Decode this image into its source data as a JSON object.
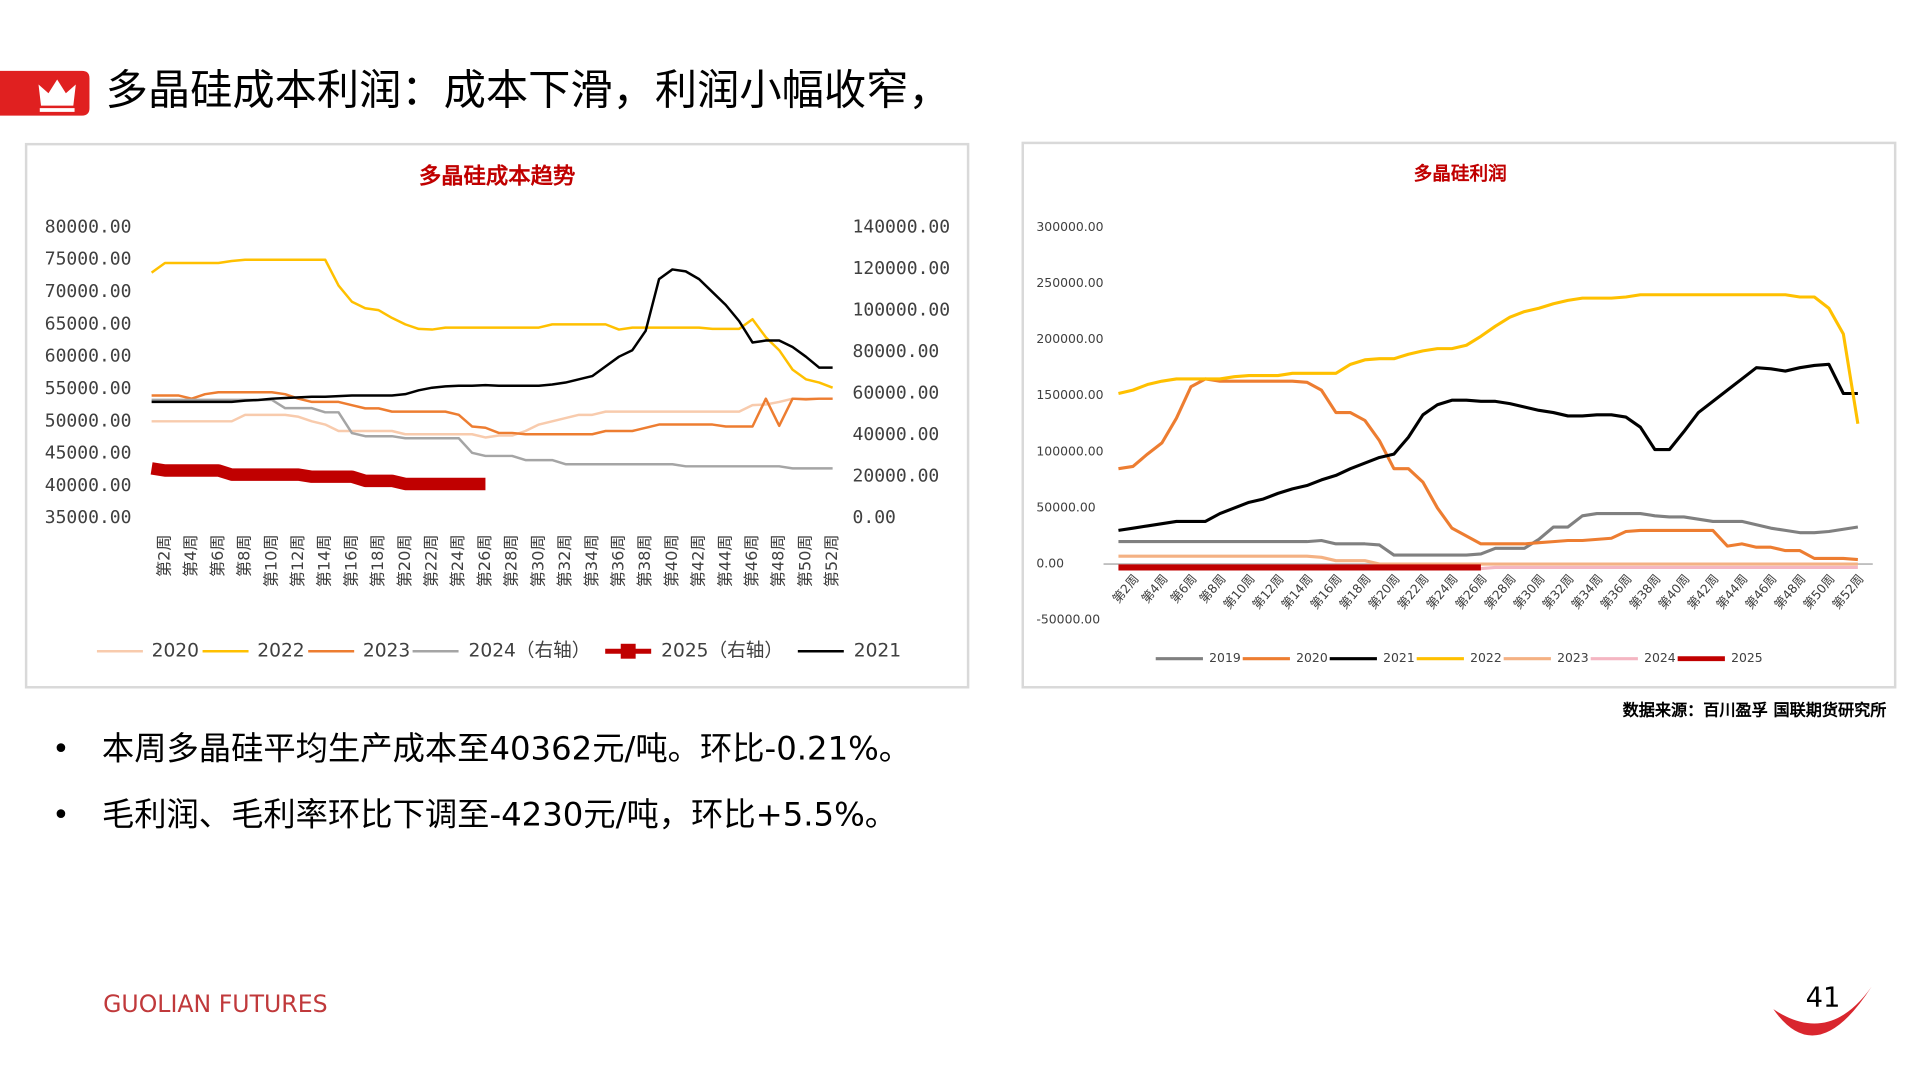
{
  "header": {
    "title": "多晶硅成本利润：成本下滑，利润小幅收窄，"
  },
  "chart_data": [
    {
      "type": "line",
      "title": "多晶硅成本趋势",
      "categories": [
        null,
        "第2周",
        null,
        "第4周",
        null,
        "第6周",
        null,
        "第8周",
        null,
        "第10周",
        null,
        "第12周",
        null,
        "第14周",
        null,
        "第16周",
        null,
        "第18周",
        null,
        "第20周",
        null,
        "第22周",
        null,
        "第24周",
        null,
        "第26周",
        null,
        "第28周",
        null,
        "第30周",
        null,
        "第32周",
        null,
        "第34周",
        null,
        "第36周",
        null,
        "第38周",
        null,
        "第40周",
        null,
        "第42周",
        null,
        "第44周",
        null,
        "第46周",
        null,
        "第48周",
        null,
        "第50周",
        null,
        "第52周"
      ],
      "ylim": [
        35000,
        80000
      ],
      "yticks": [
        {
          "value": 80000,
          "label": "80000.00"
        },
        {
          "value": 75000,
          "label": "75000.00"
        },
        {
          "value": 70000,
          "label": "70000.00"
        },
        {
          "value": 65000,
          "label": "65000.00"
        },
        {
          "value": 60000,
          "label": "60000.00"
        },
        {
          "value": 55000,
          "label": "55000.00"
        },
        {
          "value": 50000,
          "label": "50000.00"
        },
        {
          "value": 45000,
          "label": "45000.00"
        },
        {
          "value": 40000,
          "label": "40000.00"
        },
        {
          "value": 35000,
          "label": "35000.00"
        }
      ],
      "y2lim": [
        0,
        140000
      ],
      "y2ticks": [
        {
          "value": 140000,
          "label": "140000.00"
        },
        {
          "value": 120000,
          "label": "120000.00"
        },
        {
          "value": 100000,
          "label": "100000.00"
        },
        {
          "value": 80000,
          "label": "80000.00"
        },
        {
          "value": 60000,
          "label": "60000.00"
        },
        {
          "value": 40000,
          "label": "40000.00"
        },
        {
          "value": 20000,
          "label": "20000.00"
        },
        {
          "value": 0,
          "label": "0.00"
        }
      ],
      "series": [
        {
          "name": "2020",
          "color": "#f8cbad",
          "line_width": 2,
          "values": [
            50000,
            50000,
            50000,
            50000,
            50000,
            50000,
            50000,
            51000,
            51000,
            51000,
            51000,
            50700,
            50000,
            49500,
            48500,
            48500,
            48500,
            48500,
            48500,
            48000,
            48000,
            48000,
            48000,
            48000,
            48000,
            47500,
            47800,
            47800,
            48500,
            49500,
            50000,
            50500,
            51000,
            51000,
            51500,
            51500,
            51500,
            51500,
            51500,
            51500,
            51500,
            51500,
            51500,
            51500,
            51500,
            52500,
            52600,
            53000,
            53500,
            53500,
            53500,
            53500
          ]
        },
        {
          "name": "2022",
          "color": "#ffc000",
          "line_width": 2,
          "values": [
            73000,
            74500,
            74500,
            74500,
            74500,
            74500,
            74800,
            75000,
            75000,
            75000,
            75000,
            75000,
            75000,
            75000,
            71000,
            68500,
            67500,
            67200,
            66000,
            65000,
            64300,
            64200,
            64500,
            64500,
            64500,
            64500,
            64500,
            64500,
            64500,
            64500,
            65000,
            65000,
            65000,
            65000,
            65000,
            64200,
            64500,
            64500,
            64500,
            64500,
            64500,
            64500,
            64300,
            64300,
            64300,
            65800,
            63000,
            61000,
            58000,
            56500,
            56000,
            55200
          ]
        },
        {
          "name": "2023",
          "color": "#ed7d31",
          "line_width": 2,
          "values": [
            54000,
            54000,
            54000,
            53500,
            54200,
            54500,
            54500,
            54500,
            54500,
            54500,
            54200,
            53500,
            53000,
            53000,
            53000,
            52500,
            52000,
            52000,
            51500,
            51500,
            51500,
            51500,
            51500,
            51000,
            49200,
            49000,
            48200,
            48200,
            48000,
            48000,
            48000,
            48000,
            48000,
            48000,
            48500,
            48500,
            48500,
            49000,
            49500,
            49500,
            49500,
            49500,
            49500,
            49200,
            49200,
            49200,
            53500,
            49300,
            53500,
            53400,
            53500,
            53500
          ]
        },
        {
          "name": "2024（右轴）",
          "color": "#a5a5a5",
          "line_width": 2,
          "axis": "y2",
          "values": [
            57000,
            57000,
            57000,
            57000,
            57000,
            57000,
            57000,
            57000,
            57000,
            57000,
            53000,
            53000,
            53000,
            51000,
            51000,
            41000,
            39500,
            39500,
            39500,
            38500,
            38500,
            38500,
            38500,
            38500,
            31500,
            30000,
            30000,
            30000,
            28000,
            28000,
            28000,
            26000,
            26000,
            26000,
            26000,
            26000,
            26000,
            26000,
            26000,
            26000,
            25000,
            25000,
            25000,
            25000,
            25000,
            25000,
            25000,
            25000,
            24000,
            24000,
            24000,
            24000
          ]
        },
        {
          "name": "2025（右轴）",
          "color": "#c00000",
          "line_width": 10,
          "axis": "y2",
          "values": [
            24000,
            23000,
            23000,
            23000,
            23000,
            23000,
            21000,
            21000,
            21000,
            21000,
            21000,
            21000,
            20000,
            20000,
            20000,
            20000,
            18000,
            18000,
            18000,
            16500,
            16500,
            16500,
            16500,
            16500,
            16500,
            16500,
            null,
            null,
            null,
            null,
            null,
            null,
            null,
            null,
            null,
            null,
            null,
            null,
            null,
            null,
            null,
            null,
            null,
            null,
            null,
            null,
            null,
            null,
            null,
            null,
            null,
            null
          ]
        },
        {
          "name": "2021",
          "color": "#000000",
          "line_width": 2,
          "values": [
            53000,
            53000,
            53000,
            53000,
            53000,
            53000,
            53000,
            53200,
            53300,
            53500,
            53600,
            53700,
            53800,
            53800,
            53900,
            54000,
            54000,
            54000,
            54000,
            54200,
            54800,
            55200,
            55400,
            55500,
            55500,
            55600,
            55500,
            55500,
            55500,
            55500,
            55700,
            56000,
            56500,
            57000,
            58500,
            60000,
            61000,
            64000,
            72000,
            73500,
            73200,
            72000,
            70000,
            68000,
            65500,
            62200,
            62500,
            62500,
            61500,
            60000,
            58300,
            58300
          ]
        }
      ]
    },
    {
      "type": "line",
      "title": "多晶硅利润",
      "categories": [
        null,
        "第2周",
        null,
        "第4周",
        null,
        "第6周",
        null,
        "第8周",
        null,
        "第10周",
        null,
        "第12周",
        null,
        "第14周",
        null,
        "第16周",
        null,
        "第18周",
        null,
        "第20周",
        null,
        "第22周",
        null,
        "第24周",
        null,
        "第26周",
        null,
        "第28周",
        null,
        "第30周",
        null,
        "第32周",
        null,
        "第34周",
        null,
        "第36周",
        null,
        "第38周",
        null,
        "第40周",
        null,
        "第42周",
        null,
        "第44周",
        null,
        "第46周",
        null,
        "第48周",
        null,
        "第50周",
        null,
        "第52周"
      ],
      "ylim": [
        -50000,
        300000
      ],
      "yticks": [
        {
          "value": 300000,
          "label": "300000.00"
        },
        {
          "value": 250000,
          "label": "250000.00"
        },
        {
          "value": 200000,
          "label": "200000.00"
        },
        {
          "value": 150000,
          "label": "150000.00"
        },
        {
          "value": 100000,
          "label": "100000.00"
        },
        {
          "value": 50000,
          "label": "50000.00"
        },
        {
          "value": 0,
          "label": "0.00"
        },
        {
          "value": -50000,
          "label": "-50000.00"
        }
      ],
      "series": [
        {
          "name": "2019",
          "color": "#808080",
          "line_width": 2.5,
          "values": [
            20000,
            20000,
            20000,
            20000,
            20000,
            20000,
            20000,
            20000,
            20000,
            20000,
            20000,
            20000,
            20000,
            20000,
            21000,
            18000,
            18000,
            18000,
            17000,
            8000,
            8000,
            8000,
            8000,
            8000,
            8000,
            9000,
            14000,
            14000,
            14000,
            22000,
            33000,
            33000,
            43000,
            45000,
            45000,
            45000,
            45000,
            43000,
            42000,
            42000,
            40000,
            38000,
            38000,
            38000,
            35000,
            32000,
            30000,
            28000,
            28000,
            29000,
            31000,
            33000
          ]
        },
        {
          "name": "2020",
          "color": "#ed7d31",
          "line_width": 2.5,
          "values": [
            85000,
            87000,
            98000,
            108000,
            130000,
            158000,
            165000,
            163000,
            163000,
            163000,
            163000,
            163000,
            163000,
            162000,
            155000,
            135000,
            135000,
            128000,
            110000,
            85000,
            85000,
            73000,
            50000,
            32000,
            25000,
            18000,
            18000,
            18000,
            18000,
            19000,
            20000,
            21000,
            21000,
            22000,
            23000,
            29000,
            30000,
            30000,
            30000,
            30000,
            30000,
            30000,
            16000,
            18000,
            15000,
            15000,
            12000,
            12000,
            5000,
            5000,
            5000,
            4000
          ]
        },
        {
          "name": "2021",
          "color": "#000000",
          "line_width": 2.5,
          "values": [
            30000,
            32000,
            34000,
            36000,
            38000,
            38000,
            38000,
            45000,
            50000,
            55000,
            58000,
            63000,
            67000,
            70000,
            75000,
            79000,
            85000,
            90000,
            95000,
            98000,
            113000,
            133000,
            142000,
            146000,
            146000,
            145000,
            145000,
            143000,
            140000,
            137000,
            135000,
            132000,
            132000,
            133000,
            133000,
            131000,
            122000,
            102000,
            102000,
            118000,
            135000,
            145000,
            155000,
            165000,
            175000,
            174000,
            172000,
            175000,
            177000,
            178000,
            152000,
            152000
          ]
        },
        {
          "name": "2022",
          "color": "#ffc000",
          "line_width": 2.5,
          "values": [
            152000,
            155000,
            160000,
            163000,
            165000,
            165000,
            165000,
            165000,
            167000,
            168000,
            168000,
            168000,
            170000,
            170000,
            170000,
            170000,
            178000,
            182000,
            183000,
            183000,
            187000,
            190000,
            192000,
            192000,
            195000,
            203000,
            212000,
            220000,
            225000,
            228000,
            232000,
            235000,
            237000,
            237000,
            237000,
            238000,
            240000,
            240000,
            240000,
            240000,
            240000,
            240000,
            240000,
            240000,
            240000,
            240000,
            240000,
            238000,
            238000,
            228000,
            205000,
            125000
          ]
        },
        {
          "name": "2023",
          "color": "#f4b183",
          "line_width": 2.5,
          "values": [
            7000,
            7000,
            7000,
            7000,
            7000,
            7000,
            7000,
            7000,
            7000,
            7000,
            7000,
            7000,
            7000,
            7000,
            6000,
            3000,
            3000,
            3000,
            0,
            0,
            0,
            0,
            0,
            0,
            0,
            0,
            0,
            0,
            0,
            0,
            0,
            0,
            0,
            0,
            0,
            0,
            0,
            0,
            0,
            0,
            0,
            0,
            0,
            0,
            0,
            0,
            0,
            0,
            0,
            0,
            0,
            0
          ]
        },
        {
          "name": "2024",
          "color": "#f4b6c2",
          "line_width": 2.5,
          "values": [
            -4000,
            -4000,
            -4000,
            -4000,
            -4000,
            -4000,
            -4000,
            -4000,
            -4000,
            -4000,
            -4000,
            -4000,
            -4000,
            -4000,
            -4000,
            -4000,
            -4000,
            -4000,
            -4000,
            -4000,
            -4000,
            -4000,
            -4000,
            -4000,
            -4000,
            -4000,
            -3000,
            -3000,
            -3000,
            -3000,
            -3000,
            -3000,
            -3000,
            -3000,
            -3000,
            -3000,
            -3000,
            -3000,
            -3000,
            -3000,
            -3000,
            -3000,
            -3000,
            -3000,
            -3000,
            -3000,
            -3000,
            -3000,
            -3000,
            -3000,
            -3000,
            -3000
          ]
        },
        {
          "name": "2025",
          "color": "#c00000",
          "line_width": 5,
          "values": [
            -3000,
            -3000,
            -3000,
            -3000,
            -3000,
            -3000,
            -3000,
            -3000,
            -3000,
            -3000,
            -3000,
            -3000,
            -3000,
            -3000,
            -3000,
            -3000,
            -3000,
            -3000,
            -3000,
            -3000,
            -3000,
            -3000,
            -3000,
            -3000,
            -3000,
            -3000,
            null,
            null,
            null,
            null,
            null,
            null,
            null,
            null,
            null,
            null,
            null,
            null,
            null,
            null,
            null,
            null,
            null,
            null,
            null,
            null,
            null,
            null,
            null,
            null,
            null,
            null
          ]
        }
      ]
    }
  ],
  "source": "数据来源：百川盈孚  国联期货研究所",
  "bullets": [
    "本周多晶硅平均生产成本至40362元/吨。环比-0.21%。",
    "毛利润、毛利率环比下调至-4230元/吨，环比+5.5%。"
  ],
  "footer": {
    "brand": "GUOLIAN FUTURES",
    "page": 41
  }
}
